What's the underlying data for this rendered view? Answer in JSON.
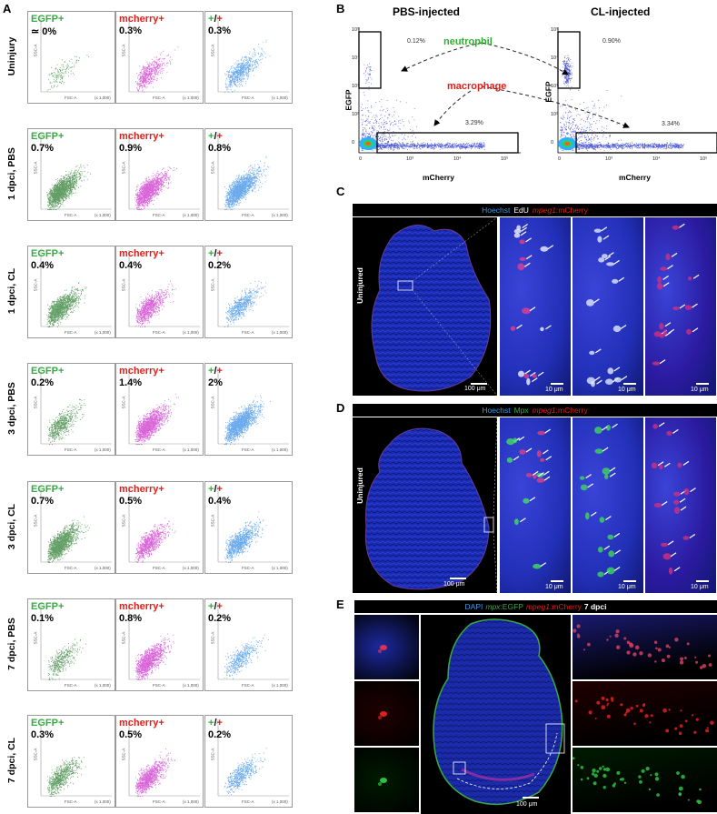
{
  "panels": {
    "a": "A",
    "b": "B",
    "c": "C",
    "d": "D",
    "e": "E"
  },
  "panelA": {
    "rows": [
      {
        "label": "Uninjury",
        "values": [
          "≃ 0%",
          "0.3%",
          "0.3%"
        ],
        "density": [
          0.05,
          0.3,
          0.4
        ],
        "legend_hidden": false
      },
      {
        "label": "1 dpci, PBS",
        "values": [
          "0.7%",
          "0.9%",
          "0.8%"
        ],
        "density": [
          1.0,
          0.9,
          1.0
        ]
      },
      {
        "label": "1 dpci, CL",
        "values": [
          "0.4%",
          "0.4%",
          "0.2%"
        ],
        "density": [
          0.8,
          0.5,
          0.35
        ]
      },
      {
        "label": "3 dpci, PBS",
        "values": [
          "0.2%",
          "1.4%",
          "2%"
        ],
        "density": [
          0.35,
          0.9,
          1.0
        ]
      },
      {
        "label": "3 dpci, CL",
        "values": [
          "0.7%",
          "0.5%",
          "0.4%"
        ],
        "density": [
          0.9,
          0.5,
          0.55
        ]
      },
      {
        "label": "7 dpci, PBS",
        "values": [
          "0.1%",
          "0.8%",
          "0.2%"
        ],
        "density": [
          0.2,
          0.7,
          0.25
        ]
      },
      {
        "label": "7 dpci, CL",
        "values": [
          "0.3%",
          "0.5%",
          "0.2%"
        ],
        "density": [
          0.4,
          0.6,
          0.3
        ]
      }
    ],
    "columns": [
      {
        "label": "EGFP+",
        "color": "#3aa845",
        "dot": "#2e7d32"
      },
      {
        "label": "mcherry+",
        "color": "#e0201b",
        "dot": "#cc33cc"
      },
      {
        "plus1": "+",
        "slash": "/",
        "plus2": "+",
        "color1": "#3aa845",
        "color2": "#e0201b",
        "dot": "#3a8ee6"
      }
    ],
    "axis": {
      "x": "FSC-A",
      "y": "SSC-A",
      "scale": "(x 1,000)"
    }
  },
  "panelB": {
    "pbs_title": "PBS-injected",
    "cl_title": "CL-injected",
    "x_label": "mCherry",
    "y_label": "EGFP",
    "pbs_neutro_pct": "0.12%",
    "pbs_macro_pct": "3.29%",
    "cl_neutro_pct": "0.90%",
    "cl_macro_pct": "3.34%",
    "neutrophil_label": "neutrophil",
    "macrophage_label": "macrophage",
    "y_ticks": [
      "10⁵",
      "10⁴",
      "10³",
      "10²",
      "0"
    ],
    "x_ticks": [
      "0",
      "10³",
      "10⁴",
      "10⁵"
    ]
  },
  "panelC": {
    "header": {
      "hoechst": "Hoechst",
      "edu": "EdU",
      "mpeg": "mpeg1",
      "mcherry": ":mCherry"
    },
    "side_label": "Uninjured",
    "scale_main": "100 μm",
    "scale_zoom": "10 μm"
  },
  "panelD": {
    "header": {
      "hoechst": "Hoechst",
      "mpx": "Mpx",
      "mpeg": "mpeg1",
      "mcherry": ":mCherry"
    },
    "side_label": "Uninjured",
    "scale_main": "100 μm",
    "scale_zoom": "10 μm"
  },
  "panelE": {
    "header": {
      "dapi": "DAPI",
      "mpx": "mpx",
      "egfp": ":EGFP",
      "mpeg": "mpeg1",
      "mcherry": ":mCherry",
      "day": "7 dpci"
    },
    "scale_main": "100 μm"
  },
  "colors": {
    "egfp": "#3aa845",
    "mcherry": "#e0201b",
    "hoechst": "#3b9be8",
    "dna_blue": "#1f2fc0"
  }
}
